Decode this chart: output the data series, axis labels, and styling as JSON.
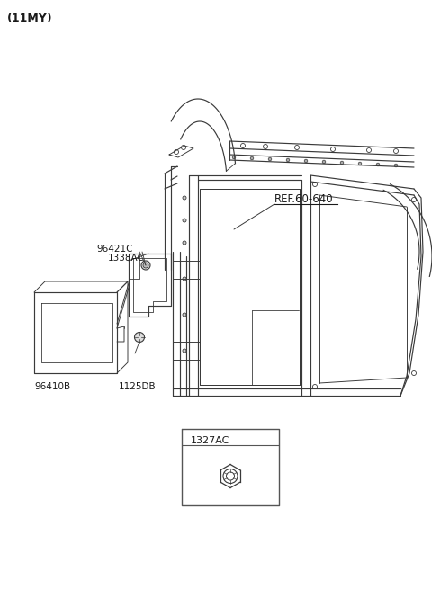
{
  "title_label": "(11MY)",
  "bg_color": "#ffffff",
  "text_color": "#1a1a1a",
  "line_color": "#3a3a3a",
  "labels": {
    "ref": "REF.60-640",
    "part1": "96421C",
    "part2": "1338AC",
    "part3": "96410B",
    "part4": "1125DB",
    "part5": "1327AC"
  },
  "fig_width": 4.8,
  "fig_height": 6.55,
  "dpi": 100
}
